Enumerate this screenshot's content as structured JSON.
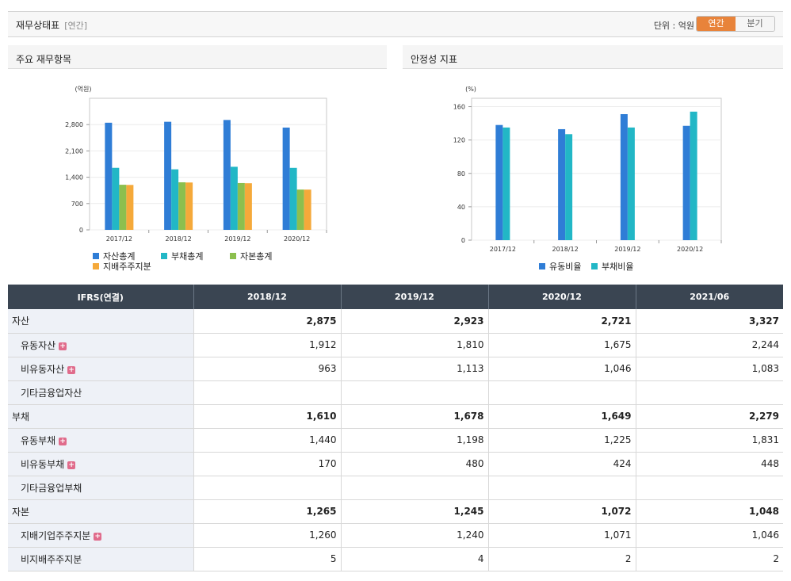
{
  "header": {
    "title": "재무상태표",
    "subtitle": "[연간]",
    "unit_label": "단위 : 억원",
    "toggle_annual": "연간",
    "toggle_quarter": "분기"
  },
  "colors": {
    "asset": "#2f7dd6",
    "liability": "#22b7c6",
    "equity": "#8cbf4e",
    "controlling": "#f5a93a",
    "accent": "#e8833a",
    "header_bg": "#3a4552"
  },
  "left_panel": {
    "title": "주요 재무항목"
  },
  "right_panel": {
    "title": "안정성 지표"
  },
  "chart_data": [
    {
      "type": "bar",
      "title": "주요 재무항목",
      "ylabel": "(억원)",
      "categories": [
        "2017/12",
        "2018/12",
        "2019/12",
        "2020/12"
      ],
      "yticks": [
        "0",
        "700",
        "1,400",
        "2,100",
        "2,800"
      ],
      "ylim": [
        0,
        3500
      ],
      "series": [
        {
          "name": "자산총계",
          "values": [
            2850,
            2875,
            2923,
            2721
          ],
          "color": "#2f7dd6"
        },
        {
          "name": "부채총계",
          "values": [
            1650,
            1610,
            1678,
            1649
          ],
          "color": "#22b7c6"
        },
        {
          "name": "자본총계",
          "values": [
            1200,
            1265,
            1245,
            1072
          ],
          "color": "#8cbf4e"
        },
        {
          "name": "지배주주지분",
          "values": [
            1195,
            1260,
            1240,
            1071
          ],
          "color": "#f5a93a"
        }
      ]
    },
    {
      "type": "bar",
      "title": "안정성 지표",
      "ylabel": "(%)",
      "categories": [
        "2017/12",
        "2018/12",
        "2019/12",
        "2020/12"
      ],
      "yticks": [
        "0",
        "40",
        "80",
        "120",
        "160"
      ],
      "ylim": [
        0,
        170
      ],
      "series": [
        {
          "name": "유동비율",
          "values": [
            138,
            133,
            151,
            137
          ],
          "color": "#2f7dd6"
        },
        {
          "name": "부채비율",
          "values": [
            135,
            127,
            135,
            154
          ],
          "color": "#22b7c6"
        }
      ]
    }
  ],
  "table": {
    "corner": "IFRS(연결)",
    "columns": [
      "2018/12",
      "2019/12",
      "2020/12",
      "2021/06"
    ],
    "rows": [
      {
        "label": "자산",
        "values": [
          "2,875",
          "2,923",
          "2,721",
          "3,327"
        ],
        "bold": true,
        "sub": false,
        "plus": false
      },
      {
        "label": "유동자산",
        "values": [
          "1,912",
          "1,810",
          "1,675",
          "2,244"
        ],
        "bold": false,
        "sub": true,
        "plus": true
      },
      {
        "label": "비유동자산",
        "values": [
          "963",
          "1,113",
          "1,046",
          "1,083"
        ],
        "bold": false,
        "sub": true,
        "plus": true
      },
      {
        "label": "기타금융업자산",
        "values": [
          "",
          "",
          "",
          ""
        ],
        "bold": false,
        "sub": true,
        "plus": false
      },
      {
        "label": "부채",
        "values": [
          "1,610",
          "1,678",
          "1,649",
          "2,279"
        ],
        "bold": true,
        "sub": false,
        "plus": false
      },
      {
        "label": "유동부채",
        "values": [
          "1,440",
          "1,198",
          "1,225",
          "1,831"
        ],
        "bold": false,
        "sub": true,
        "plus": true
      },
      {
        "label": "비유동부채",
        "values": [
          "170",
          "480",
          "424",
          "448"
        ],
        "bold": false,
        "sub": true,
        "plus": true
      },
      {
        "label": "기타금융업부채",
        "values": [
          "",
          "",
          "",
          ""
        ],
        "bold": false,
        "sub": true,
        "plus": false
      },
      {
        "label": "자본",
        "values": [
          "1,265",
          "1,245",
          "1,072",
          "1,048"
        ],
        "bold": true,
        "sub": false,
        "plus": false
      },
      {
        "label": "지배기업주주지분",
        "values": [
          "1,260",
          "1,240",
          "1,071",
          "1,046"
        ],
        "bold": false,
        "sub": true,
        "plus": true
      },
      {
        "label": "비지배주주지분",
        "values": [
          "5",
          "4",
          "2",
          "2"
        ],
        "bold": false,
        "sub": true,
        "plus": false
      }
    ]
  }
}
